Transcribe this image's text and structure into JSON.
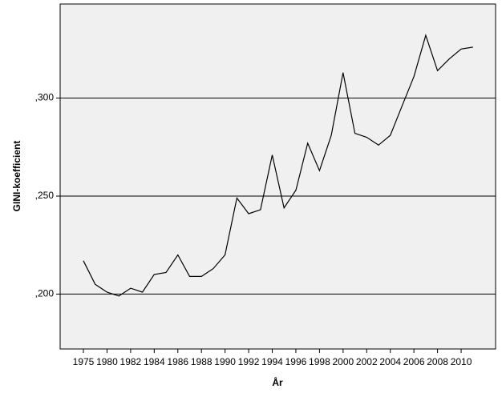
{
  "chart_data": {
    "type": "line",
    "xlabel": "År",
    "ylabel": "GINI-koefficient",
    "categories": [
      "1975",
      null,
      "1980",
      null,
      "1982",
      null,
      "1984",
      null,
      "1986",
      null,
      "1988",
      null,
      "1990",
      null,
      "1992",
      null,
      "1994",
      null,
      "1996",
      null,
      "1998",
      null,
      "2000",
      null,
      "2002",
      null,
      "2004",
      null,
      "2006",
      null,
      "2008",
      null,
      "2010",
      null
    ],
    "series": [
      {
        "name": "GINI",
        "color": "#000000",
        "values": [
          0.217,
          0.205,
          0.201,
          0.199,
          0.203,
          0.201,
          0.21,
          0.211,
          0.22,
          0.209,
          0.209,
          0.213,
          0.22,
          0.249,
          0.241,
          0.243,
          0.271,
          0.244,
          0.253,
          0.277,
          0.263,
          0.281,
          0.313,
          0.282,
          0.28,
          0.276,
          0.281,
          0.296,
          0.311,
          0.332,
          0.314,
          0.32,
          0.325,
          0.326
        ]
      }
    ],
    "ylim": [
      0.172,
      0.348
    ],
    "yticks": [
      {
        "value": 0.2,
        "label": ",200"
      },
      {
        "value": 0.25,
        "label": ",250"
      },
      {
        "value": 0.3,
        "label": ",300"
      }
    ],
    "grid": true
  }
}
